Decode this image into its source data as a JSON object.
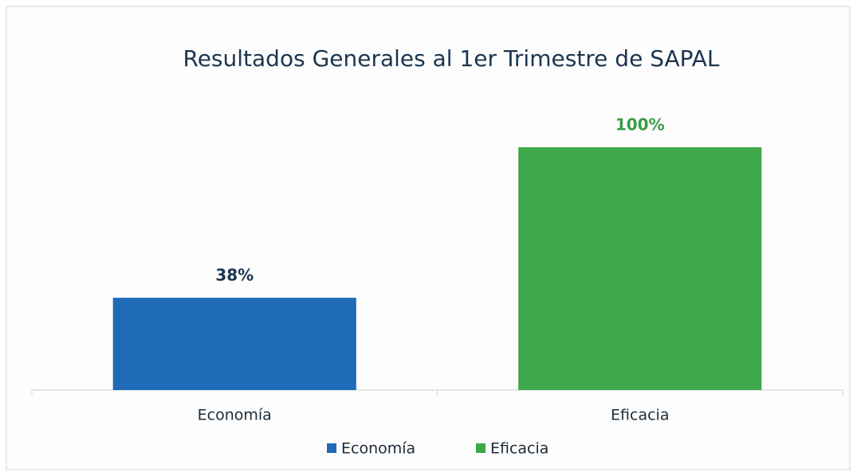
{
  "chart_data": {
    "type": "bar",
    "title": "Resultados Generales al 1er Trimestre de SAPAL",
    "categories": [
      "Economía",
      "Eficacia"
    ],
    "series": [
      {
        "name": "Economía",
        "color": "#1f6bb8",
        "label_color": "#1c3550",
        "values": [
          38,
          null
        ],
        "value_labels": [
          "38%",
          null
        ]
      },
      {
        "name": "Eficacia",
        "color": "#3ea84a",
        "label_color": "#3a9c46",
        "values": [
          null,
          100
        ],
        "value_labels": [
          null,
          "100%"
        ]
      }
    ],
    "ylim": [
      0,
      100
    ],
    "legend": "bottom"
  }
}
